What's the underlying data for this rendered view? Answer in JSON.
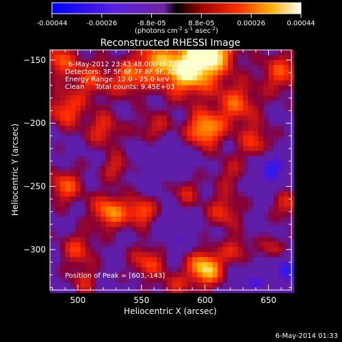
{
  "chart_data": {
    "type": "heatmap",
    "title": "Reconstructed RHESSI Image",
    "xlabel": "Heliocentric X (arcsec)",
    "ylabel": "Heliocentric Y (arcsec)",
    "xlim": [
      478,
      668
    ],
    "ylim": [
      -332,
      -142
    ],
    "xticks": [
      500,
      550,
      600,
      650
    ],
    "yticks": [
      -150,
      -200,
      -250,
      -300
    ],
    "colorbar": {
      "min": -0.00044,
      "max": 0.00044,
      "ticks": [
        "-0.00044",
        "-0.00026",
        "-8.8e-05",
        "8.8e-05",
        "0.00026",
        "0.00044"
      ],
      "units_main": "(photons cm",
      "units_sup1": "-2",
      "units_mid": " s",
      "units_sup2": "-1",
      "units_mid2": " asec",
      "units_sup3": "-2",
      "units_end": ")"
    },
    "annotations": [
      "6-May-2012 23:43:48.000 to 23:48:42.000",
      "Detectors: 3F 5F 6F 7F 8F 9F, Att 0",
      "Energy Range: 12.0 - 25.0 keV",
      "Clean     Total counts: 9.45E+03"
    ],
    "peak_label": "Position of Peak = [603,-143]",
    "peak": [
      603,
      -143
    ],
    "blobs": [
      [
        603,
        -143,
        1.0,
        14
      ],
      [
        585,
        -160,
        0.8,
        14
      ],
      [
        560,
        -150,
        0.55,
        12
      ],
      [
        540,
        -165,
        0.5,
        10
      ],
      [
        510,
        -165,
        0.45,
        12
      ],
      [
        485,
        -150,
        0.5,
        10
      ],
      [
        490,
        -190,
        0.55,
        10
      ],
      [
        600,
        -205,
        0.8,
        10
      ],
      [
        625,
        -185,
        0.55,
        12
      ],
      [
        660,
        -160,
        0.5,
        12
      ],
      [
        640,
        -215,
        0.45,
        10
      ],
      [
        560,
        -205,
        0.4,
        10
      ],
      [
        520,
        -205,
        0.45,
        10
      ],
      [
        490,
        -250,
        0.55,
        10
      ],
      [
        525,
        -270,
        0.7,
        10
      ],
      [
        550,
        -270,
        0.6,
        8
      ],
      [
        585,
        -255,
        0.35,
        8
      ],
      [
        615,
        -270,
        0.45,
        10
      ],
      [
        665,
        -265,
        0.45,
        8
      ],
      [
        500,
        -300,
        0.45,
        10
      ],
      [
        555,
        -310,
        0.5,
        10
      ],
      [
        600,
        -315,
        0.9,
        10
      ],
      [
        625,
        -300,
        0.4,
        8
      ],
      [
        655,
        -300,
        0.4,
        8
      ],
      [
        530,
        -235,
        0.4,
        8
      ],
      [
        620,
        -240,
        0.3,
        10
      ],
      [
        505,
        -325,
        0.35,
        8
      ],
      [
        575,
        -330,
        0.35,
        8
      ]
    ],
    "dark_spots": [
      [
        650,
        -240,
        -0.6,
        8
      ],
      [
        665,
        -315,
        -0.8,
        8
      ],
      [
        655,
        -230,
        -0.5,
        6
      ],
      [
        580,
        -290,
        -0.4,
        8
      ],
      [
        565,
        -225,
        -0.4,
        10
      ],
      [
        640,
        -325,
        -0.5,
        8
      ]
    ]
  },
  "footer": {
    "timestamp": "6-May-2014 01:33"
  }
}
